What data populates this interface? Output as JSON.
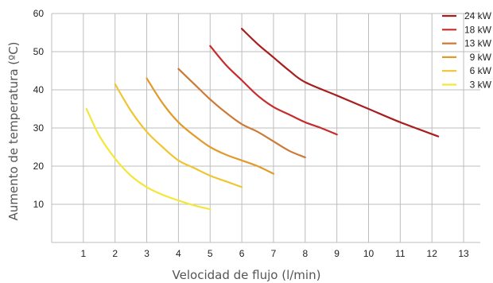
{
  "chart_data": {
    "type": "line",
    "title": "",
    "xlabel": "Velocidad de flujo (l/min)",
    "ylabel": "Aumento de temperatura (ºC)",
    "xlim": [
      0,
      13.5
    ],
    "ylim": [
      0,
      60
    ],
    "x_ticks": [
      "1",
      "2",
      "3",
      "4",
      "5",
      "6",
      "7",
      "8",
      "9",
      "10",
      "11",
      "12",
      "13"
    ],
    "y_ticks": [
      "10",
      "20",
      "30",
      "40",
      "50",
      "60"
    ],
    "grid": true,
    "legend_position": "top-right",
    "series": [
      {
        "name": "24 kW",
        "color": "#a81e1e",
        "x": [
          6.0,
          6.5,
          7.0,
          7.5,
          8.0,
          9.0,
          10.0,
          11.0,
          12.2
        ],
        "y": [
          56,
          52,
          48.5,
          45,
          42,
          38.5,
          35,
          31.5,
          27.8
        ]
      },
      {
        "name": "18 kW",
        "color": "#c82b2b",
        "x": [
          5.0,
          5.5,
          6.0,
          6.5,
          7.0,
          7.5,
          8.0,
          8.5,
          9.0
        ],
        "y": [
          51.5,
          46.5,
          42.5,
          38.5,
          35.5,
          33.5,
          31.5,
          30,
          28.3
        ]
      },
      {
        "name": "13 kW",
        "color": "#cd7a35",
        "x": [
          4.0,
          4.5,
          5.0,
          5.5,
          6.0,
          6.5,
          7.0,
          7.5,
          8.0
        ],
        "y": [
          45.5,
          41.5,
          37.5,
          34,
          31,
          29,
          26.5,
          24,
          22.3
        ]
      },
      {
        "name": "9 kW",
        "color": "#e19a2c",
        "x": [
          3.0,
          3.5,
          4.0,
          4.5,
          5.0,
          5.5,
          6.0,
          6.5,
          7.0
        ],
        "y": [
          43,
          36.5,
          31.5,
          28,
          25,
          23,
          21.5,
          20,
          18
        ]
      },
      {
        "name": "6 kW",
        "color": "#efc531",
        "x": [
          2.0,
          2.5,
          3.0,
          3.5,
          4.0,
          4.5,
          5.0,
          5.5,
          6.0
        ],
        "y": [
          41.5,
          34.5,
          29,
          25,
          21.5,
          19.5,
          17.5,
          16,
          14.5
        ]
      },
      {
        "name": "3 kW",
        "color": "#f4e63a",
        "x": [
          1.1,
          1.5,
          2.0,
          2.5,
          3.0,
          3.5,
          4.0,
          4.5,
          5.0
        ],
        "y": [
          35,
          28,
          22,
          17.5,
          14.5,
          12.5,
          11,
          9.7,
          8.7
        ]
      }
    ]
  }
}
